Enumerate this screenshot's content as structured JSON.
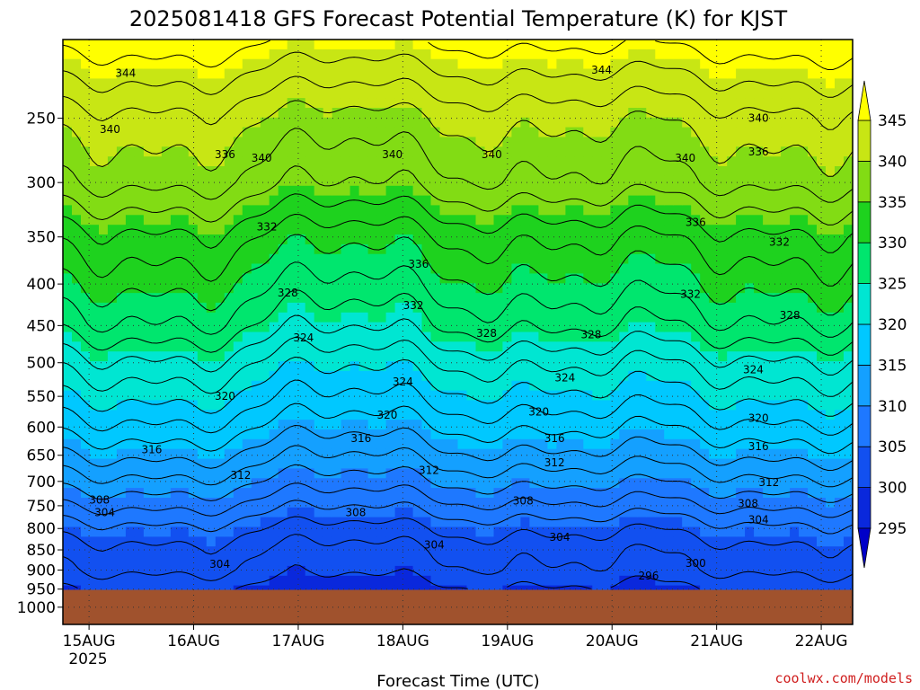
{
  "chart_data": {
    "type": "heatmap",
    "title": "2025081418 GFS Forecast Potential Temperature (K) for KJST",
    "xlabel": "Forecast Time (UTC)",
    "ylabel": "",
    "credit": "coolwx.com/models",
    "x_ticks": [
      "15AUG",
      "16AUG",
      "17AUG",
      "18AUG",
      "19AUG",
      "20AUG",
      "21AUG",
      "22AUG"
    ],
    "x_year_label": "2025",
    "x_range": [
      -0.25,
      7.3
    ],
    "y_ticks": [
      250,
      300,
      350,
      400,
      450,
      500,
      550,
      600,
      650,
      700,
      750,
      800,
      850,
      900,
      950,
      1000
    ],
    "y_range_hpa": [
      200,
      1050
    ],
    "y_scale": "log-pressure (inverted)",
    "ground_level_hpa": 952,
    "colorbar": {
      "levels": [
        295,
        300,
        305,
        310,
        315,
        320,
        325,
        330,
        335,
        340,
        345
      ],
      "colors": [
        "#0000c8",
        "#0a28dc",
        "#1250f0",
        "#1e78ff",
        "#14a0ff",
        "#00c8ff",
        "#00e6d2",
        "#00e66e",
        "#1ed21e",
        "#82dc14",
        "#c8e614",
        "#ffff00"
      ],
      "extend": "both"
    },
    "ground_color": "#a0522d",
    "grid": true,
    "profile": {
      "pressure_hpa": [
        200,
        250,
        300,
        350,
        400,
        450,
        500,
        550,
        600,
        650,
        700,
        750,
        800,
        850,
        900,
        950
      ],
      "theta_k": [
        347,
        341,
        338,
        333,
        330,
        327,
        323,
        320,
        317,
        314,
        311,
        308,
        305,
        303,
        302,
        300
      ]
    },
    "contour_labels": [
      {
        "label": "344",
        "x": 0.35,
        "p": 220
      },
      {
        "label": "344",
        "x": 4.9,
        "p": 218
      },
      {
        "label": "340",
        "x": 0.2,
        "p": 258
      },
      {
        "label": "340",
        "x": 1.65,
        "p": 280
      },
      {
        "label": "340",
        "x": 2.9,
        "p": 277
      },
      {
        "label": "340",
        "x": 3.85,
        "p": 277
      },
      {
        "label": "340",
        "x": 5.7,
        "p": 280
      },
      {
        "label": "340",
        "x": 6.4,
        "p": 250
      },
      {
        "label": "336",
        "x": 1.3,
        "p": 277
      },
      {
        "label": "336",
        "x": 6.4,
        "p": 275
      },
      {
        "label": "336",
        "x": 3.15,
        "p": 378
      },
      {
        "label": "336",
        "x": 5.8,
        "p": 336
      },
      {
        "label": "332",
        "x": 1.7,
        "p": 340
      },
      {
        "label": "332",
        "x": 3.1,
        "p": 425
      },
      {
        "label": "332",
        "x": 5.75,
        "p": 412
      },
      {
        "label": "332",
        "x": 6.6,
        "p": 355
      },
      {
        "label": "328",
        "x": 1.9,
        "p": 410
      },
      {
        "label": "328",
        "x": 3.8,
        "p": 460
      },
      {
        "label": "328",
        "x": 4.8,
        "p": 462
      },
      {
        "label": "328",
        "x": 6.7,
        "p": 437
      },
      {
        "label": "324",
        "x": 2.05,
        "p": 466
      },
      {
        "label": "324",
        "x": 3.0,
        "p": 528
      },
      {
        "label": "324",
        "x": 4.55,
        "p": 522
      },
      {
        "label": "324",
        "x": 6.35,
        "p": 510
      },
      {
        "label": "320",
        "x": 1.3,
        "p": 550
      },
      {
        "label": "320",
        "x": 2.85,
        "p": 580
      },
      {
        "label": "320",
        "x": 4.3,
        "p": 575
      },
      {
        "label": "320",
        "x": 6.4,
        "p": 585
      },
      {
        "label": "316",
        "x": 0.6,
        "p": 640
      },
      {
        "label": "316",
        "x": 2.6,
        "p": 620
      },
      {
        "label": "316",
        "x": 4.45,
        "p": 620
      },
      {
        "label": "316",
        "x": 6.4,
        "p": 634
      },
      {
        "label": "312",
        "x": 1.45,
        "p": 688
      },
      {
        "label": "312",
        "x": 3.25,
        "p": 678
      },
      {
        "label": "312",
        "x": 4.45,
        "p": 664
      },
      {
        "label": "312",
        "x": 6.5,
        "p": 702
      },
      {
        "label": "308",
        "x": 0.1,
        "p": 738
      },
      {
        "label": "308",
        "x": 2.55,
        "p": 765
      },
      {
        "label": "308",
        "x": 4.15,
        "p": 740
      },
      {
        "label": "308",
        "x": 6.3,
        "p": 745
      },
      {
        "label": "304",
        "x": 0.15,
        "p": 765
      },
      {
        "label": "304",
        "x": 1.25,
        "p": 885
      },
      {
        "label": "304",
        "x": 3.3,
        "p": 838
      },
      {
        "label": "304",
        "x": 4.5,
        "p": 820
      },
      {
        "label": "304",
        "x": 6.4,
        "p": 780
      },
      {
        "label": "300",
        "x": 5.8,
        "p": 883
      },
      {
        "label": "296",
        "x": 5.35,
        "p": 915
      }
    ]
  }
}
